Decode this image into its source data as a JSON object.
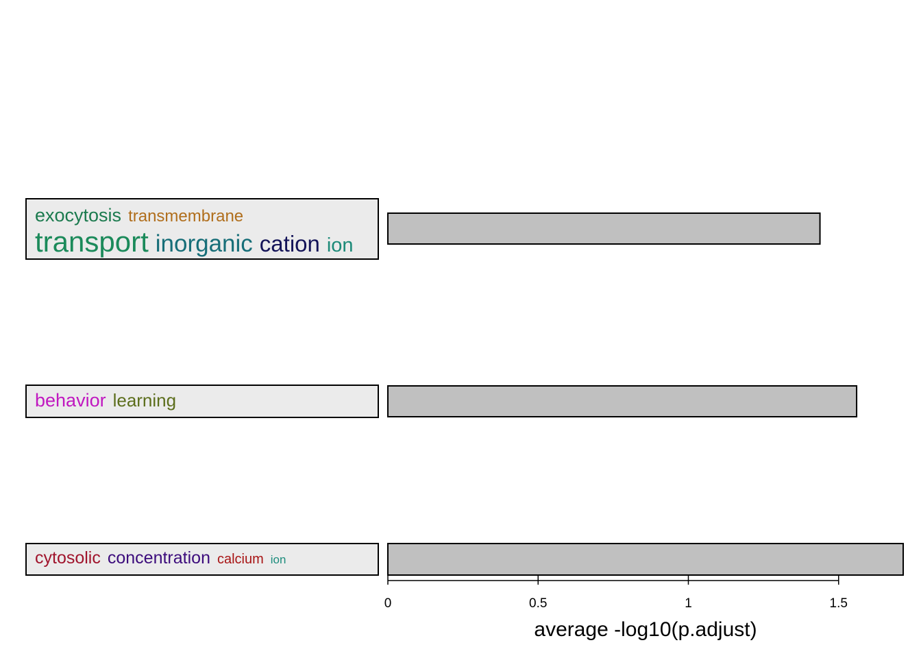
{
  "chart_data": {
    "type": "bar",
    "orientation": "horizontal",
    "xlabel": "average -log10(p.adjust)",
    "xticks": [
      0,
      0.5,
      1,
      1.5
    ],
    "xlim": [
      0,
      1.72
    ],
    "categories": [
      {
        "values": 1.438,
        "lines": [
          [
            {
              "text": "exocytosis",
              "color": "#1b7a4e",
              "size": 27
            },
            {
              "text": "transmembrane",
              "color": "#b06e1c",
              "size": 24
            }
          ],
          [
            {
              "text": "transport",
              "color": "#1b8a5a",
              "size": 42
            },
            {
              "text": "inorganic",
              "color": "#176e78",
              "size": 35
            },
            {
              "text": "cation",
              "color": "#141458",
              "size": 33
            },
            {
              "text": "ion",
              "color": "#1c8a78",
              "size": 29
            }
          ]
        ]
      },
      {
        "values": 1.56,
        "lines": [
          [
            {
              "text": "behavior",
              "color": "#c018c0",
              "size": 27
            },
            {
              "text": "learning",
              "color": "#5c6e1c",
              "size": 26
            }
          ]
        ]
      },
      {
        "values": 1.715,
        "lines": [
          [
            {
              "text": "cytosolic",
              "color": "#a0142c",
              "size": 25
            },
            {
              "text": "concentration",
              "color": "#3c0c7c",
              "size": 25
            },
            {
              "text": "calcium",
              "color": "#a81414",
              "size": 20
            },
            {
              "text": "ion",
              "color": "#1c8c7c",
              "size": 17
            }
          ]
        ]
      }
    ],
    "bar_color": "#c0c0c0"
  }
}
